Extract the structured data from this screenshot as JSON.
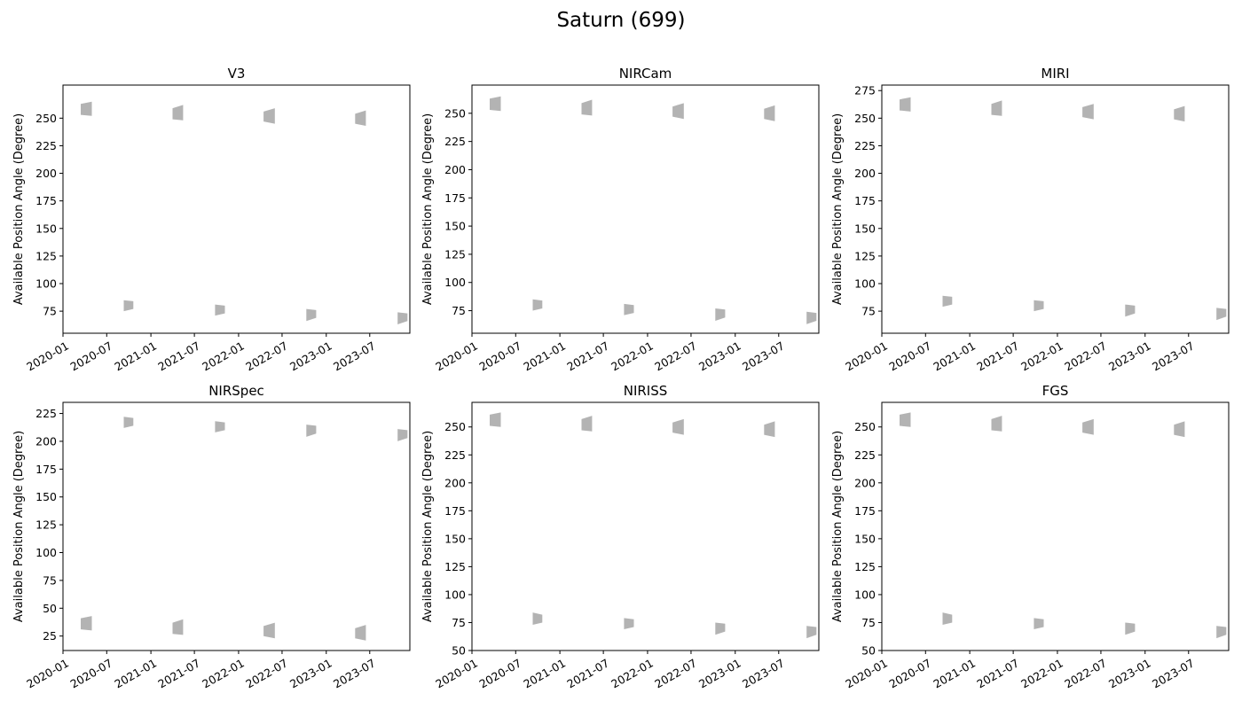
{
  "figure": {
    "title": "Saturn (699)"
  },
  "chart_data": [
    {
      "type": "area",
      "title": "V3",
      "ylabel": "Available Position Angle (Degree)",
      "xlim": [
        "2020-01-01",
        "2023-12-15"
      ],
      "ylim": [
        55,
        280
      ],
      "yticks": [
        75,
        100,
        125,
        150,
        175,
        200,
        225,
        250
      ],
      "xticks": [
        "2020-01",
        "2020-07",
        "2021-01",
        "2021-07",
        "2022-01",
        "2022-07",
        "2023-01",
        "2023-07"
      ],
      "color": "#b3b3b3",
      "windows": [
        {
          "start": "2020-03-15",
          "end": "2020-04-30",
          "low_start": 253,
          "low_end": 252,
          "high_start": 263,
          "high_end": 265
        },
        {
          "start": "2020-09-10",
          "end": "2020-10-20",
          "low_start": 75,
          "low_end": 77,
          "high_start": 85,
          "high_end": 84
        },
        {
          "start": "2021-04-01",
          "end": "2021-05-15",
          "low_start": 249,
          "low_end": 248,
          "high_start": 259,
          "high_end": 262
        },
        {
          "start": "2021-09-25",
          "end": "2021-11-05",
          "low_start": 71,
          "low_end": 73,
          "high_start": 81,
          "high_end": 80
        },
        {
          "start": "2022-04-15",
          "end": "2022-06-01",
          "low_start": 247,
          "low_end": 245,
          "high_start": 256,
          "high_end": 259
        },
        {
          "start": "2022-10-10",
          "end": "2022-11-20",
          "low_start": 66,
          "low_end": 69,
          "high_start": 77,
          "high_end": 76
        },
        {
          "start": "2023-05-01",
          "end": "2023-06-15",
          "low_start": 245,
          "low_end": 243,
          "high_start": 254,
          "high_end": 257
        },
        {
          "start": "2023-10-25",
          "end": "2023-12-05",
          "low_start": 63,
          "low_end": 66,
          "high_start": 74,
          "high_end": 73
        }
      ]
    },
    {
      "type": "area",
      "title": "NIRCam",
      "ylabel": "Available Position Angle (Degree)",
      "xlim": [
        "2020-01-01",
        "2023-12-15"
      ],
      "ylim": [
        55,
        275
      ],
      "yticks": [
        75,
        100,
        125,
        150,
        175,
        200,
        225,
        250
      ],
      "xticks": [
        "2020-01",
        "2020-07",
        "2021-01",
        "2021-07",
        "2022-01",
        "2022-07",
        "2023-01",
        "2023-07"
      ],
      "color": "#b3b3b3",
      "windows": [
        {
          "start": "2020-03-15",
          "end": "2020-04-30",
          "low_start": 253,
          "low_end": 252,
          "high_start": 263,
          "high_end": 265
        },
        {
          "start": "2020-09-10",
          "end": "2020-10-20",
          "low_start": 75,
          "low_end": 77,
          "high_start": 85,
          "high_end": 84
        },
        {
          "start": "2021-04-01",
          "end": "2021-05-15",
          "low_start": 249,
          "low_end": 248,
          "high_start": 259,
          "high_end": 262
        },
        {
          "start": "2021-09-25",
          "end": "2021-11-05",
          "low_start": 71,
          "low_end": 73,
          "high_start": 81,
          "high_end": 80
        },
        {
          "start": "2022-04-15",
          "end": "2022-06-01",
          "low_start": 247,
          "low_end": 245,
          "high_start": 256,
          "high_end": 259
        },
        {
          "start": "2022-10-10",
          "end": "2022-11-20",
          "low_start": 66,
          "low_end": 69,
          "high_start": 77,
          "high_end": 76
        },
        {
          "start": "2023-05-01",
          "end": "2023-06-15",
          "low_start": 245,
          "low_end": 243,
          "high_start": 254,
          "high_end": 257
        },
        {
          "start": "2023-10-25",
          "end": "2023-12-05",
          "low_start": 63,
          "low_end": 66,
          "high_start": 74,
          "high_end": 73
        }
      ]
    },
    {
      "type": "area",
      "title": "MIRI",
      "ylabel": "Available Position Angle (Degree)",
      "xlim": [
        "2020-01-01",
        "2023-12-15"
      ],
      "ylim": [
        55,
        280
      ],
      "yticks": [
        75,
        100,
        125,
        150,
        175,
        200,
        225,
        250,
        275
      ],
      "xticks": [
        "2020-01",
        "2020-07",
        "2021-01",
        "2021-07",
        "2022-01",
        "2022-07",
        "2023-01",
        "2023-07"
      ],
      "color": "#b3b3b3",
      "windows": [
        {
          "start": "2020-03-15",
          "end": "2020-04-30",
          "low_start": 257,
          "low_end": 256,
          "high_start": 267,
          "high_end": 269
        },
        {
          "start": "2020-09-10",
          "end": "2020-10-20",
          "low_start": 79,
          "low_end": 81,
          "high_start": 89,
          "high_end": 88
        },
        {
          "start": "2021-04-01",
          "end": "2021-05-15",
          "low_start": 253,
          "low_end": 252,
          "high_start": 263,
          "high_end": 266
        },
        {
          "start": "2021-09-25",
          "end": "2021-11-05",
          "low_start": 75,
          "low_end": 77,
          "high_start": 85,
          "high_end": 84
        },
        {
          "start": "2022-04-15",
          "end": "2022-06-01",
          "low_start": 251,
          "low_end": 249,
          "high_start": 260,
          "high_end": 263
        },
        {
          "start": "2022-10-10",
          "end": "2022-11-20",
          "low_start": 70,
          "low_end": 73,
          "high_start": 81,
          "high_end": 80
        },
        {
          "start": "2023-05-01",
          "end": "2023-06-15",
          "low_start": 249,
          "low_end": 247,
          "high_start": 258,
          "high_end": 261
        },
        {
          "start": "2023-10-25",
          "end": "2023-12-05",
          "low_start": 67,
          "low_end": 70,
          "high_start": 78,
          "high_end": 77
        }
      ]
    },
    {
      "type": "area",
      "title": "NIRSpec",
      "ylabel": "Available Position Angle (Degree)",
      "xlim": [
        "2020-01-01",
        "2023-12-15"
      ],
      "ylim": [
        12,
        235
      ],
      "yticks": [
        25,
        50,
        75,
        100,
        125,
        150,
        175,
        200,
        225
      ],
      "xticks": [
        "2020-01",
        "2020-07",
        "2021-01",
        "2021-07",
        "2022-01",
        "2022-07",
        "2023-01",
        "2023-07"
      ],
      "color": "#b3b3b3",
      "windows": [
        {
          "start": "2020-03-15",
          "end": "2020-04-30",
          "low_start": 31,
          "low_end": 30,
          "high_start": 41,
          "high_end": 43
        },
        {
          "start": "2020-09-10",
          "end": "2020-10-20",
          "low_start": 212,
          "low_end": 214,
          "high_start": 222,
          "high_end": 221
        },
        {
          "start": "2021-04-01",
          "end": "2021-05-15",
          "low_start": 27,
          "low_end": 26,
          "high_start": 37,
          "high_end": 40
        },
        {
          "start": "2021-09-25",
          "end": "2021-11-05",
          "low_start": 208,
          "low_end": 210,
          "high_start": 218,
          "high_end": 217
        },
        {
          "start": "2022-04-15",
          "end": "2022-06-01",
          "low_start": 25,
          "low_end": 23,
          "high_start": 34,
          "high_end": 37
        },
        {
          "start": "2022-10-10",
          "end": "2022-11-20",
          "low_start": 204,
          "low_end": 207,
          "high_start": 215,
          "high_end": 214
        },
        {
          "start": "2023-05-01",
          "end": "2023-06-15",
          "low_start": 23,
          "low_end": 21,
          "high_start": 32,
          "high_end": 35
        },
        {
          "start": "2023-10-25",
          "end": "2023-12-05",
          "low_start": 200,
          "low_end": 203,
          "high_start": 211,
          "high_end": 210
        }
      ]
    },
    {
      "type": "area",
      "title": "NIRISS",
      "ylabel": "Available Position Angle (Degree)",
      "xlim": [
        "2020-01-01",
        "2023-12-15"
      ],
      "ylim": [
        50,
        272
      ],
      "yticks": [
        50,
        75,
        100,
        125,
        150,
        175,
        200,
        225,
        250
      ],
      "xticks": [
        "2020-01",
        "2020-07",
        "2021-01",
        "2021-07",
        "2022-01",
        "2022-07",
        "2023-01",
        "2023-07"
      ],
      "color": "#b3b3b3",
      "windows": [
        {
          "start": "2020-03-15",
          "end": "2020-04-30",
          "low_start": 251,
          "low_end": 250,
          "high_start": 261,
          "high_end": 263
        },
        {
          "start": "2020-09-10",
          "end": "2020-10-20",
          "low_start": 73,
          "low_end": 75,
          "high_start": 84,
          "high_end": 82
        },
        {
          "start": "2021-04-01",
          "end": "2021-05-15",
          "low_start": 247,
          "low_end": 246,
          "high_start": 257,
          "high_end": 260
        },
        {
          "start": "2021-09-25",
          "end": "2021-11-05",
          "low_start": 69,
          "low_end": 71,
          "high_start": 79,
          "high_end": 78
        },
        {
          "start": "2022-04-15",
          "end": "2022-06-01",
          "low_start": 245,
          "low_end": 243,
          "high_start": 254,
          "high_end": 257
        },
        {
          "start": "2022-10-10",
          "end": "2022-11-20",
          "low_start": 64,
          "low_end": 67,
          "high_start": 75,
          "high_end": 74
        },
        {
          "start": "2023-05-01",
          "end": "2023-06-15",
          "low_start": 243,
          "low_end": 241,
          "high_start": 252,
          "high_end": 255
        },
        {
          "start": "2023-10-25",
          "end": "2023-12-05",
          "low_start": 61,
          "low_end": 64,
          "high_start": 72,
          "high_end": 71
        }
      ]
    },
    {
      "type": "area",
      "title": "FGS",
      "ylabel": "Available Position Angle (Degree)",
      "xlim": [
        "2020-01-01",
        "2023-12-15"
      ],
      "ylim": [
        50,
        272
      ],
      "yticks": [
        50,
        75,
        100,
        125,
        150,
        175,
        200,
        225,
        250
      ],
      "xticks": [
        "2020-01",
        "2020-07",
        "2021-01",
        "2021-07",
        "2022-01",
        "2022-07",
        "2023-01",
        "2023-07"
      ],
      "color": "#b3b3b3",
      "windows": [
        {
          "start": "2020-03-15",
          "end": "2020-04-30",
          "low_start": 251,
          "low_end": 250,
          "high_start": 261,
          "high_end": 263
        },
        {
          "start": "2020-09-10",
          "end": "2020-10-20",
          "low_start": 73,
          "low_end": 75,
          "high_start": 84,
          "high_end": 82
        },
        {
          "start": "2021-04-01",
          "end": "2021-05-15",
          "low_start": 247,
          "low_end": 246,
          "high_start": 257,
          "high_end": 260
        },
        {
          "start": "2021-09-25",
          "end": "2021-11-05",
          "low_start": 69,
          "low_end": 71,
          "high_start": 79,
          "high_end": 78
        },
        {
          "start": "2022-04-15",
          "end": "2022-06-01",
          "low_start": 245,
          "low_end": 243,
          "high_start": 254,
          "high_end": 257
        },
        {
          "start": "2022-10-10",
          "end": "2022-11-20",
          "low_start": 64,
          "low_end": 67,
          "high_start": 75,
          "high_end": 74
        },
        {
          "start": "2023-05-01",
          "end": "2023-06-15",
          "low_start": 243,
          "low_end": 241,
          "high_start": 252,
          "high_end": 255
        },
        {
          "start": "2023-10-25",
          "end": "2023-12-05",
          "low_start": 61,
          "low_end": 64,
          "high_start": 72,
          "high_end": 71
        }
      ]
    }
  ]
}
